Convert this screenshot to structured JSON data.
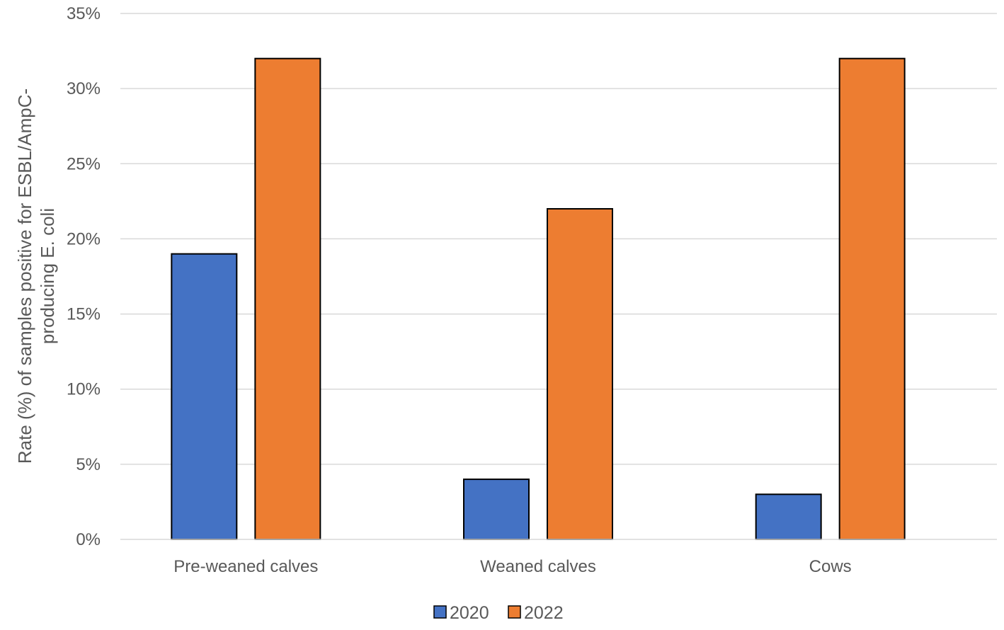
{
  "chart_data": {
    "type": "bar",
    "categories": [
      "Pre-weaned calves",
      "Weaned calves",
      "Cows"
    ],
    "series": [
      {
        "name": "2020",
        "values": [
          19,
          4,
          3
        ],
        "color": "#4472c4"
      },
      {
        "name": "2022",
        "values": [
          32,
          22,
          32
        ],
        "color": "#ed7d31"
      }
    ],
    "ylabel_lines": [
      "Rate (%) of samples positive for ESBL/AmpC-",
      "producing E. coli"
    ],
    "ylim": [
      0,
      35
    ],
    "ytick_step": 5,
    "ytick_suffix": "%",
    "grid": true,
    "legend_position": "bottom-center"
  }
}
